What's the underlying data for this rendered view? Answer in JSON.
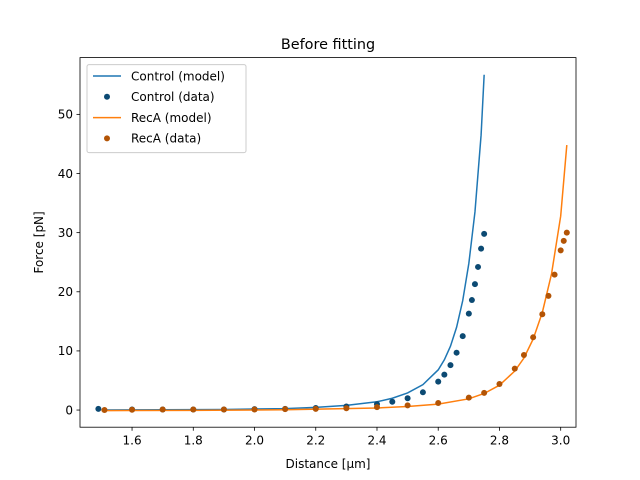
{
  "chart_data": {
    "type": "line",
    "title": "Before fitting",
    "xlabel": "Distance [μm]",
    "ylabel": "Force [pN]",
    "xlim": [
      1.43,
      3.05
    ],
    "ylim": [
      -2.9,
      59.6
    ],
    "xticks": [
      1.6,
      1.8,
      2.0,
      2.2,
      2.4,
      2.6,
      2.8,
      3.0
    ],
    "xtick_labels": [
      "1.6",
      "1.8",
      "2.0",
      "2.2",
      "2.4",
      "2.6",
      "2.8",
      "3.0"
    ],
    "yticks": [
      0,
      10,
      20,
      30,
      40,
      50
    ],
    "ytick_labels": [
      "0",
      "10",
      "20",
      "30",
      "40",
      "50"
    ],
    "grid": false,
    "legend_position": "upper-left",
    "series": [
      {
        "name": "Control (model)",
        "kind": "line",
        "color": "#1f77b4",
        "x": [
          1.5,
          1.7,
          1.9,
          2.1,
          2.2,
          2.3,
          2.4,
          2.45,
          2.5,
          2.55,
          2.6,
          2.62,
          2.64,
          2.66,
          2.68,
          2.7,
          2.72,
          2.74,
          2.75
        ],
        "y": [
          0.0,
          0.05,
          0.1,
          0.25,
          0.45,
          0.8,
          1.4,
          2.0,
          2.9,
          4.3,
          6.8,
          8.5,
          10.8,
          14.0,
          18.5,
          24.8,
          33.5,
          46.5,
          56.7
        ]
      },
      {
        "name": "Control (data)",
        "kind": "dots",
        "color": "#0c4a73",
        "x": [
          1.49,
          1.6,
          1.7,
          1.8,
          1.9,
          2.0,
          2.1,
          2.2,
          2.3,
          2.4,
          2.45,
          2.5,
          2.55,
          2.6,
          2.62,
          2.64,
          2.66,
          2.68,
          2.7,
          2.71,
          2.72,
          2.73,
          2.74,
          2.75
        ],
        "y": [
          0.2,
          0.1,
          0.1,
          0.1,
          0.1,
          0.15,
          0.2,
          0.35,
          0.6,
          1.0,
          1.4,
          2.0,
          3.0,
          4.8,
          6.0,
          7.6,
          9.7,
          12.5,
          16.3,
          18.6,
          21.3,
          24.2,
          27.3,
          29.8
        ]
      },
      {
        "name": "RecA (model)",
        "kind": "line",
        "color": "#ff7f0e",
        "x": [
          1.5,
          1.8,
          2.1,
          2.4,
          2.5,
          2.6,
          2.7,
          2.75,
          2.8,
          2.85,
          2.88,
          2.91,
          2.94,
          2.97,
          3.0,
          3.02
        ],
        "y": [
          -0.1,
          -0.05,
          0.05,
          0.35,
          0.6,
          1.0,
          1.9,
          2.8,
          4.2,
          6.6,
          8.8,
          12.0,
          16.5,
          23.0,
          32.8,
          44.8
        ]
      },
      {
        "name": "RecA (data)",
        "kind": "dots",
        "color": "#b35405",
        "x": [
          1.51,
          1.6,
          1.7,
          1.8,
          1.9,
          2.0,
          2.1,
          2.2,
          2.3,
          2.4,
          2.5,
          2.6,
          2.7,
          2.75,
          2.8,
          2.85,
          2.88,
          2.91,
          2.94,
          2.96,
          2.98,
          3.0,
          3.01,
          3.02
        ],
        "y": [
          0.0,
          0.05,
          0.1,
          0.1,
          0.1,
          0.1,
          0.15,
          0.2,
          0.3,
          0.5,
          0.8,
          1.2,
          2.1,
          2.9,
          4.4,
          7.0,
          9.3,
          12.3,
          16.2,
          19.3,
          22.9,
          27.0,
          28.6,
          30.0
        ]
      }
    ]
  }
}
